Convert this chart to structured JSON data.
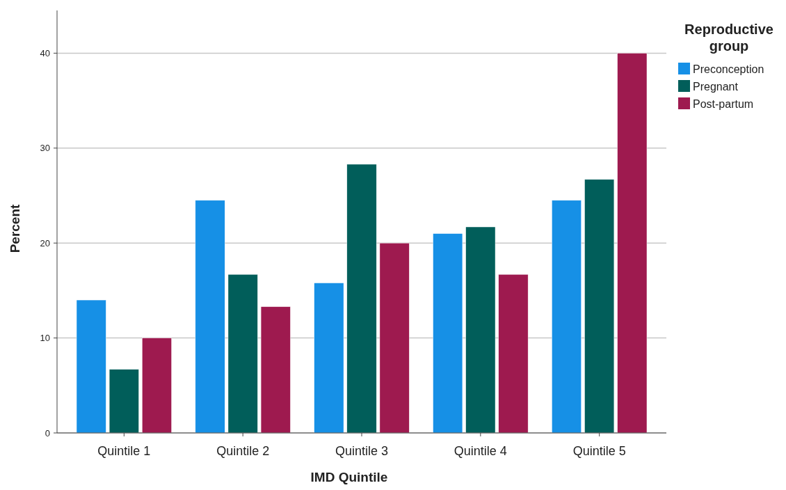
{
  "chart_data": {
    "type": "bar",
    "xlabel": "IMD Quintile",
    "ylabel": "Percent",
    "legend_title": "Reproductive group",
    "categories": [
      "Quintile 1",
      "Quintile 2",
      "Quintile 3",
      "Quintile 4",
      "Quintile 5"
    ],
    "series": [
      {
        "name": "Preconception",
        "color": "#1690e6",
        "values": [
          14.0,
          24.5,
          15.8,
          21.0,
          24.5
        ]
      },
      {
        "name": "Pregnant",
        "color": "#015e5a",
        "values": [
          6.7,
          16.7,
          28.3,
          21.7,
          26.7
        ]
      },
      {
        "name": "Post-partum",
        "color": "#9e1a4f",
        "values": [
          10.0,
          13.3,
          20.0,
          16.7,
          40.0
        ]
      }
    ],
    "ylim": [
      0,
      44.5
    ],
    "yticks": [
      0,
      10,
      20,
      30,
      40
    ],
    "grid": "y",
    "legend": "top right"
  }
}
